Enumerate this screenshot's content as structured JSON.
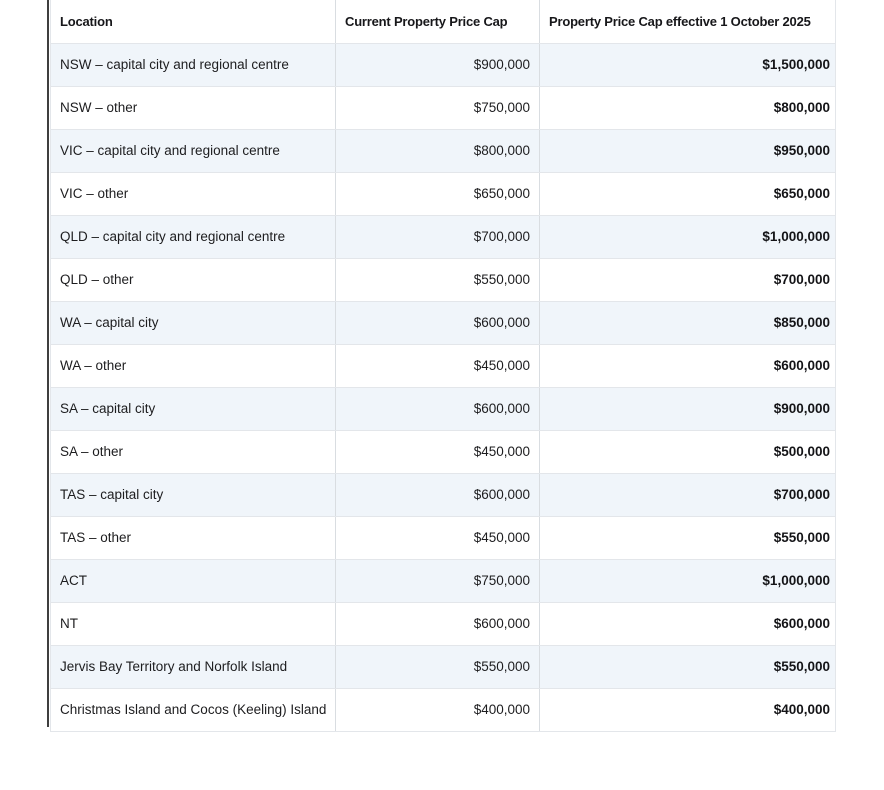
{
  "table": {
    "columns": [
      {
        "label": "Location",
        "align": "left"
      },
      {
        "label": "Current Property Price Cap",
        "align": "left-header-right-values"
      },
      {
        "label": "Property Price Cap effective 1 October 2025",
        "align": "left-header-right-values"
      }
    ],
    "rows": [
      {
        "location": "NSW – capital city and regional centre",
        "current_cap": "$900,000",
        "new_cap": "$1,500,000"
      },
      {
        "location": "NSW – other",
        "current_cap": "$750,000",
        "new_cap": "$800,000"
      },
      {
        "location": "VIC – capital city and regional centre",
        "current_cap": "$800,000",
        "new_cap": "$950,000"
      },
      {
        "location": "VIC – other",
        "current_cap": "$650,000",
        "new_cap": "$650,000"
      },
      {
        "location": "QLD – capital city and regional centre",
        "current_cap": "$700,000",
        "new_cap": "$1,000,000"
      },
      {
        "location": "QLD – other",
        "current_cap": "$550,000",
        "new_cap": "$700,000"
      },
      {
        "location": "WA – capital city",
        "current_cap": "$600,000",
        "new_cap": "$850,000"
      },
      {
        "location": "WA – other",
        "current_cap": "$450,000",
        "new_cap": "$600,000"
      },
      {
        "location": "SA – capital city",
        "current_cap": "$600,000",
        "new_cap": "$900,000"
      },
      {
        "location": "SA – other",
        "current_cap": "$450,000",
        "new_cap": "$500,000"
      },
      {
        "location": "TAS – capital city",
        "current_cap": "$600,000",
        "new_cap": "$700,000"
      },
      {
        "location": "TAS – other",
        "current_cap": "$450,000",
        "new_cap": "$550,000"
      },
      {
        "location": "ACT",
        "current_cap": "$750,000",
        "new_cap": "$1,000,000"
      },
      {
        "location": "NT",
        "current_cap": "$600,000",
        "new_cap": "$600,000"
      },
      {
        "location": "Jervis Bay Territory and Norfolk Island",
        "current_cap": "$550,000",
        "new_cap": "$550,000"
      },
      {
        "location": "Christmas Island and Cocos (Keeling) Island",
        "current_cap": "$400,000",
        "new_cap": "$400,000"
      }
    ]
  },
  "colors": {
    "row_shade": "#f0f5fa",
    "row_white": "#ffffff",
    "grid_line": "#e3e6ea",
    "column_line": "#d9dde1",
    "text": "#1d1d1f",
    "vertical_rule": "#3f3f3f"
  }
}
